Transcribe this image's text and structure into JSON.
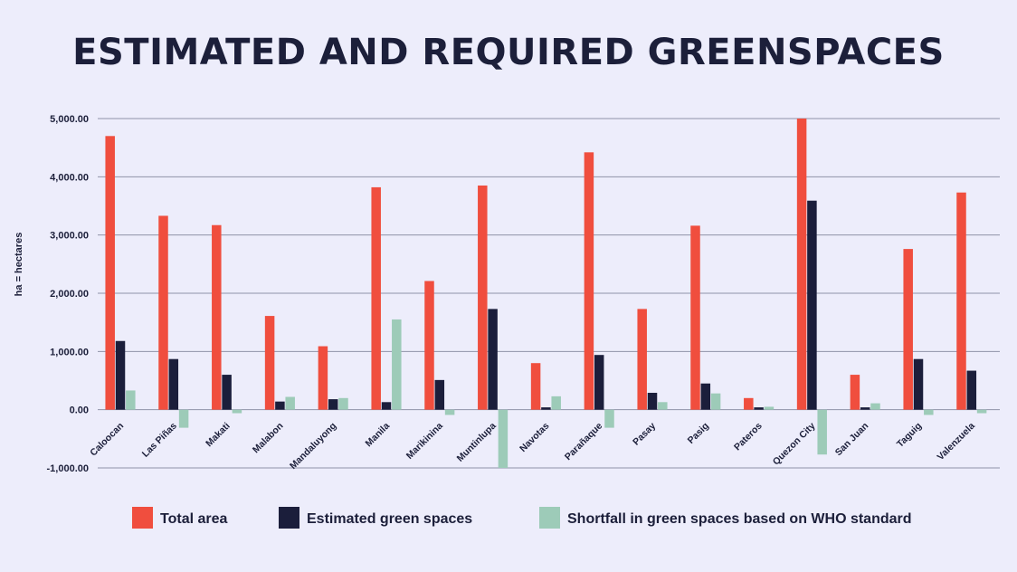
{
  "chart_data": {
    "type": "bar",
    "title": "ESTIMATED AND REQUIRED GREENSPACES",
    "ylabel": "ha = hectares",
    "xlabel": "",
    "ylim": [
      -1000,
      5000
    ],
    "yticks": [
      5000,
      4000,
      3000,
      2000,
      1000,
      0,
      -1000
    ],
    "ytick_labels": [
      "5,000.00",
      "4,000.00",
      "3,000.00",
      "2,000.00",
      "1,000.00",
      "0.00",
      "-1,000.00"
    ],
    "grid": true,
    "legend_position": "bottom",
    "categories": [
      "Caloocan",
      "Las Piñas",
      "Makati",
      "Malabon",
      "Mandaluyong",
      "Manila",
      "Marikinina",
      "Muntinlupa",
      "Navotas",
      "Parañaque",
      "Pasay",
      "Pasig",
      "Pateros",
      "Quezon City",
      "San Juan",
      "Taguig",
      "Valenzuela"
    ],
    "series": [
      {
        "name": "Total area",
        "color": "#f04e3e",
        "values": [
          4700,
          3330,
          3170,
          1610,
          1090,
          3820,
          2210,
          3850,
          800,
          4420,
          1730,
          3160,
          200,
          5000,
          600,
          2760,
          3730
        ]
      },
      {
        "name": "Estimated green spaces",
        "color": "#1b1e3b",
        "values": [
          1180,
          870,
          600,
          140,
          180,
          130,
          510,
          1730,
          40,
          940,
          290,
          450,
          40,
          3590,
          40,
          870,
          670
        ]
      },
      {
        "name": "Shortfall in green spaces based on WHO standard",
        "color": "#9dcbb8",
        "values": [
          330,
          -310,
          -60,
          220,
          200,
          1550,
          -90,
          -1000,
          230,
          -310,
          130,
          280,
          50,
          -770,
          110,
          -90,
          -60
        ]
      }
    ]
  }
}
